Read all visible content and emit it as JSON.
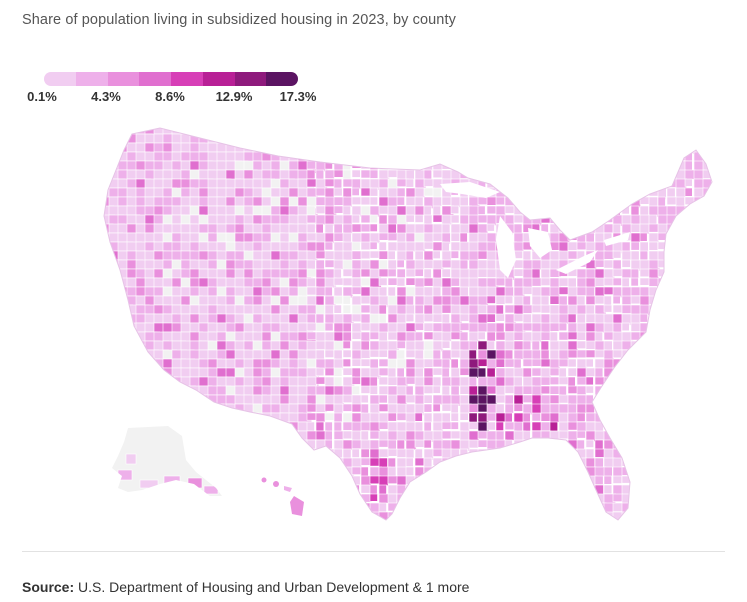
{
  "title": "Share of population living in subsidized housing in 2023, by county",
  "legend": {
    "colors": [
      "#f1cdf1",
      "#eeb0ea",
      "#e990dd",
      "#e06fcf",
      "#d73fb7",
      "#b82096",
      "#8e1a7c",
      "#5b1462"
    ],
    "labels": [
      "0.1%",
      "4.3%",
      "8.6%",
      "12.9%",
      "17.3%"
    ]
  },
  "map": {
    "base_color": "#f1cdf1",
    "no_data_color": "#f2f2f2",
    "border_color": "#ffffff"
  },
  "source": {
    "label": "Source:",
    "text": "U.S. Department of Housing and Urban Development & 1 more"
  }
}
